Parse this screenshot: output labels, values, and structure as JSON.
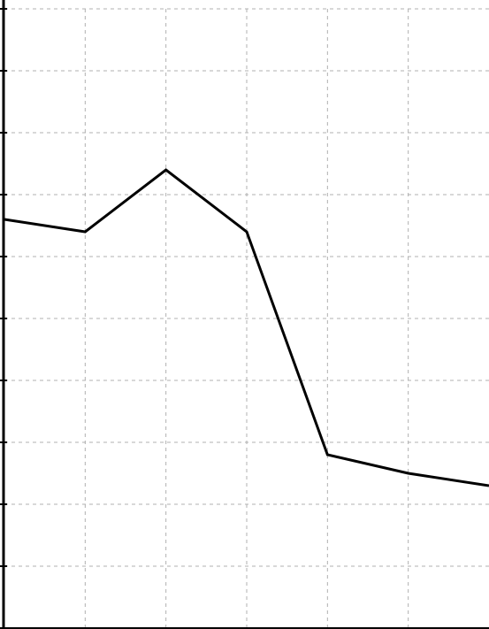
{
  "chart_data": {
    "type": "line",
    "title": "",
    "xlabel": "",
    "ylabel": "",
    "grid": true,
    "legend": "none",
    "x": [
      0,
      1,
      2,
      3,
      4,
      5,
      6
    ],
    "xlim": [
      0,
      6
    ],
    "ylim": [
      0,
      10
    ],
    "series": [
      {
        "values": [
          6.6,
          6.4,
          7.4,
          6.4,
          2.8,
          2.5,
          2.3
        ],
        "color": "#000000"
      }
    ],
    "grid_x": [
      1,
      2,
      3,
      4,
      5
    ],
    "grid_y": [
      1,
      2,
      3,
      4,
      5,
      6,
      7,
      8,
      9,
      10
    ]
  }
}
